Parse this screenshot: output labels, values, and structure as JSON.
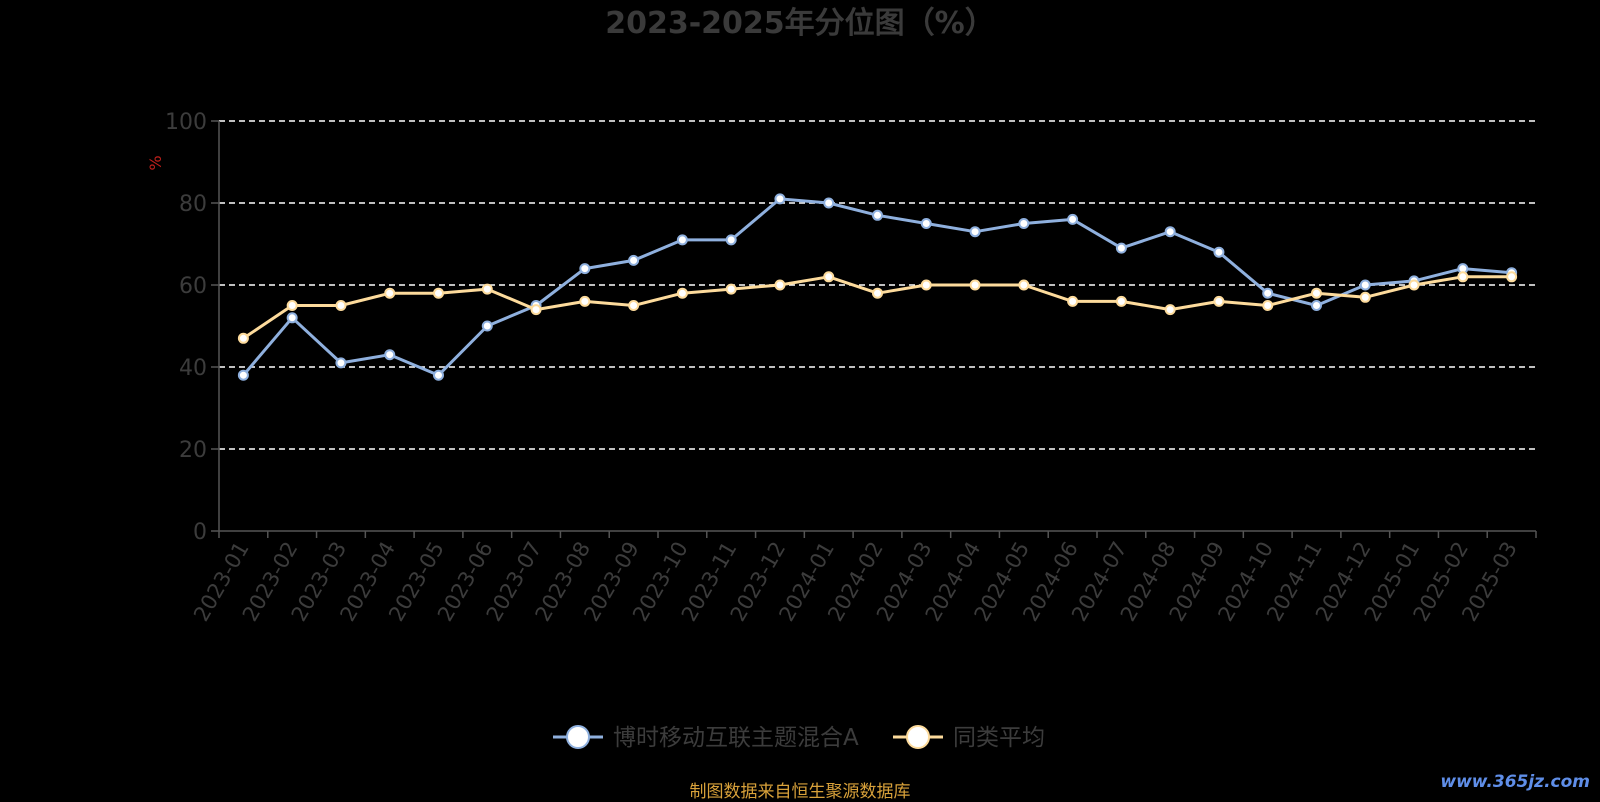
{
  "chart_data": {
    "type": "line",
    "title": "2023-2025年分位图（%）",
    "ylabel": "%",
    "ylim": [
      0,
      100
    ],
    "yticks": [
      0,
      20,
      40,
      60,
      80,
      100
    ],
    "grid": true,
    "legend_position": "bottom",
    "categories": [
      "2023-01",
      "2023-02",
      "2023-03",
      "2023-04",
      "2023-05",
      "2023-06",
      "2023-07",
      "2023-08",
      "2023-09",
      "2023-10",
      "2023-11",
      "2023-12",
      "2024-01",
      "2024-02",
      "2024-03",
      "2024-04",
      "2024-05",
      "2024-06",
      "2024-07",
      "2024-08",
      "2024-09",
      "2024-10",
      "2024-11",
      "2024-12",
      "2025-01",
      "2025-02",
      "2025-03"
    ],
    "series": [
      {
        "name": "博时移动互联主题混合A",
        "color": "#8fb0de",
        "values": [
          38,
          52,
          41,
          43,
          38,
          50,
          55,
          64,
          66,
          71,
          71,
          81,
          80,
          77,
          75,
          73,
          75,
          76,
          69,
          73,
          68,
          58,
          55,
          60,
          61,
          64,
          63
        ]
      },
      {
        "name": "同类平均",
        "color": "#fddb9c",
        "values": [
          47,
          55,
          55,
          58,
          58,
          59,
          54,
          56,
          55,
          58,
          59,
          60,
          62,
          58,
          60,
          60,
          60,
          56,
          56,
          54,
          56,
          55,
          58,
          57,
          60,
          62,
          62
        ]
      }
    ]
  },
  "footer": {
    "source": "制图数据来自恒生聚源数据库",
    "color": "#d8a13a"
  },
  "watermark": {
    "text": "www.365jz.com",
    "color": "#5f8ee8"
  },
  "colors": {
    "title": "#3a3a3a",
    "axis_text": "#3c3c3c",
    "ylabel": "#c0201b",
    "grid": "#ffffff",
    "axis": "#555555"
  }
}
